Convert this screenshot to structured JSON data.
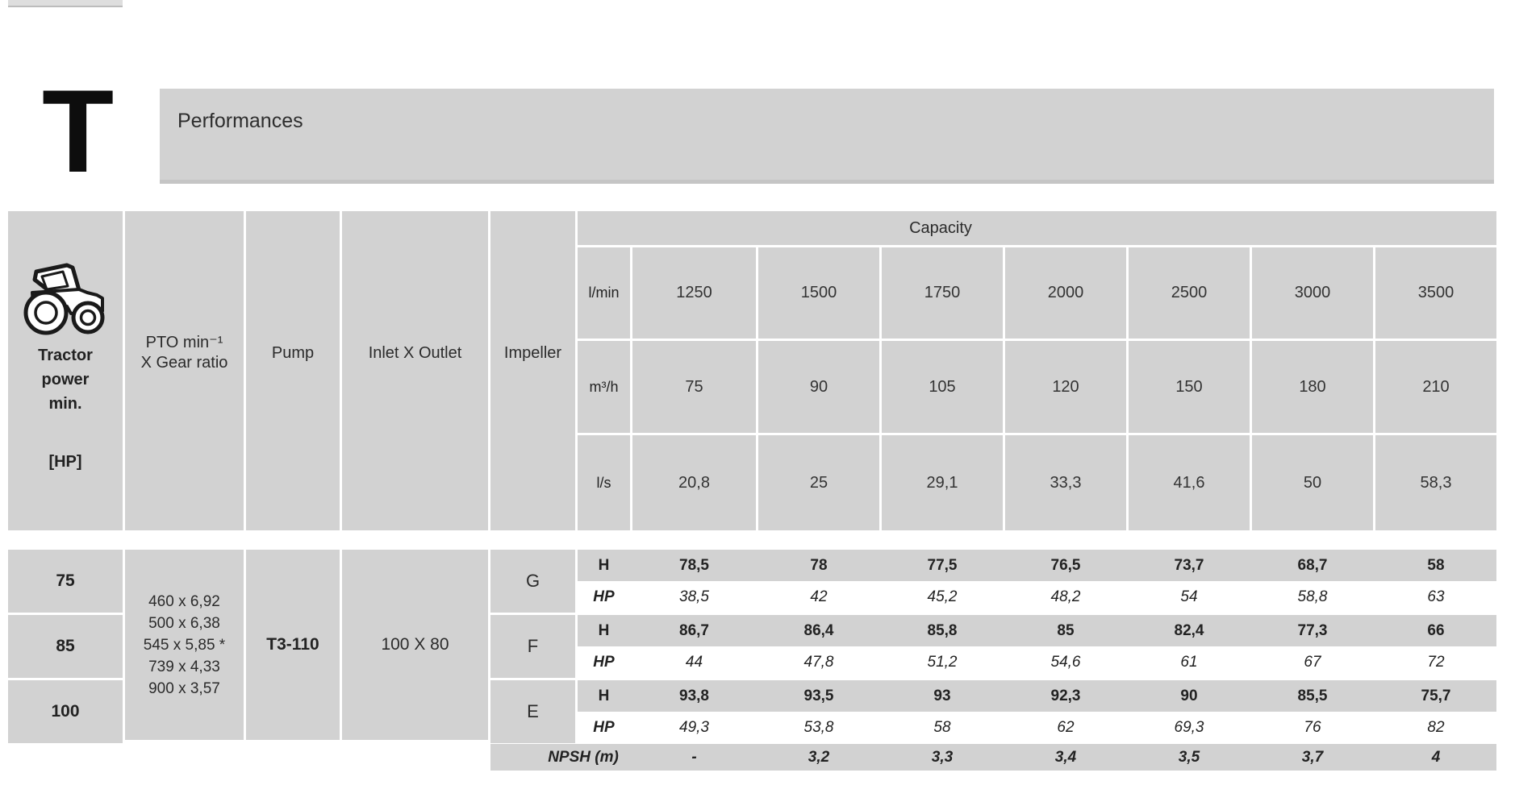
{
  "page": {
    "letter": "T",
    "section_title": "Performances"
  },
  "table": {
    "headers": {
      "tractor": {
        "lines": [
          "Tractor",
          "power",
          "min."
        ],
        "unit": "[HP]"
      },
      "pto": {
        "lines": [
          "PTO min⁻¹",
          "X Gear ratio"
        ]
      },
      "pump": "Pump",
      "inlet": "Inlet X Outlet",
      "impeller": "Impeller",
      "capacity": "Capacity"
    },
    "capacity_rows": [
      {
        "unit": "l/min",
        "values": [
          "1250",
          "1500",
          "1750",
          "2000",
          "2500",
          "3000",
          "3500"
        ]
      },
      {
        "unit": "m³/h",
        "values": [
          "75",
          "90",
          "105",
          "120",
          "150",
          "180",
          "210"
        ]
      },
      {
        "unit": "l/s",
        "values": [
          "20,8",
          "25",
          "29,1",
          "33,3",
          "41,6",
          "50",
          "58,3"
        ]
      }
    ],
    "tractor_power": [
      "75",
      "85",
      "100"
    ],
    "pto_ratios": [
      "460 x 6,92",
      "500 x 6,38",
      "545 x 5,85 *",
      "739 x 4,33",
      "900 x 3,57"
    ],
    "pump_model": "T3-110",
    "inlet_outlet": "100 X 80",
    "row_labels": {
      "h": "H",
      "hp": "HP"
    },
    "impellers": [
      {
        "label": "G",
        "h": [
          "78,5",
          "78",
          "77,5",
          "76,5",
          "73,7",
          "68,7",
          "58"
        ],
        "hp": [
          "38,5",
          "42",
          "45,2",
          "48,2",
          "54",
          "58,8",
          "63"
        ]
      },
      {
        "label": "F",
        "h": [
          "86,7",
          "86,4",
          "85,8",
          "85",
          "82,4",
          "77,3",
          "66"
        ],
        "hp": [
          "44",
          "47,8",
          "51,2",
          "54,6",
          "61",
          "67",
          "72"
        ]
      },
      {
        "label": "E",
        "h": [
          "93,8",
          "93,5",
          "93",
          "92,3",
          "90",
          "85,5",
          "75,7"
        ],
        "hp": [
          "49,3",
          "53,8",
          "58",
          "62",
          "69,3",
          "76",
          "82"
        ]
      }
    ],
    "npsh": {
      "label": "NPSH (m)",
      "values": [
        "-",
        "3,2",
        "3,3",
        "3,4",
        "3,5",
        "3,7",
        "4"
      ]
    }
  },
  "colors": {
    "cell_gray": "#d2d2d2",
    "text": "#222222",
    "bar_edge": "#c5c5c5"
  }
}
